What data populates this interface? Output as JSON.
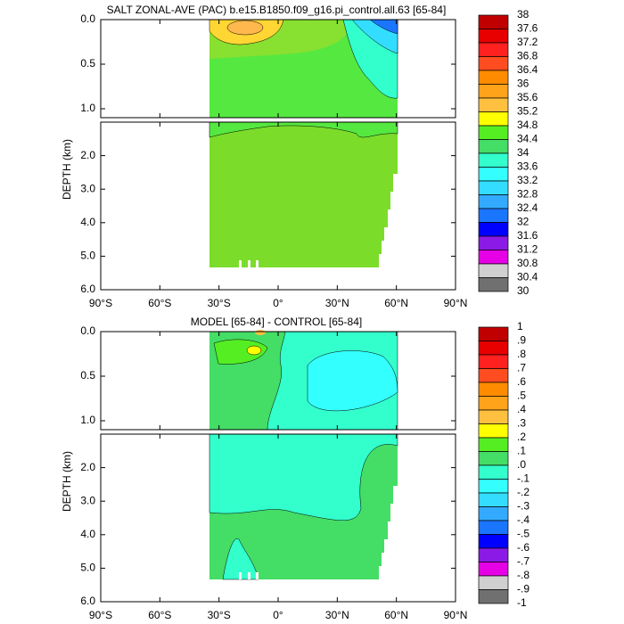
{
  "chart_data": [
    {
      "type": "contour",
      "title": "SALT ZONAL-AVE (PAC) b.e15.B1850.f09_g16.pi_control.all.63 [65-84]",
      "ylabel": "DEPTH (km)",
      "xlim": [
        -90,
        90
      ],
      "xticks": [
        {
          "value": -90,
          "label": "90°S"
        },
        {
          "value": -60,
          "label": "60°S"
        },
        {
          "value": -30,
          "label": "30°S"
        },
        {
          "value": 0,
          "label": "0°"
        },
        {
          "value": 30,
          "label": "30°N"
        },
        {
          "value": 60,
          "label": "60°N"
        },
        {
          "value": 90,
          "label": "90°N"
        }
      ],
      "panels": [
        {
          "ylim": [
            0,
            1.1
          ],
          "yticks": [
            {
              "value": 0,
              "label": "0.0"
            },
            {
              "value": 0.5,
              "label": "0.5"
            },
            {
              "value": 1,
              "label": "1.0"
            }
          ]
        },
        {
          "ylim": [
            1,
            6
          ],
          "yticks": [
            {
              "value": 2,
              "label": "2.0"
            },
            {
              "value": 3,
              "label": "3.0"
            },
            {
              "value": 4,
              "label": "4.0"
            },
            {
              "value": 5,
              "label": "5.0"
            },
            {
              "value": 6,
              "label": "6.0"
            }
          ]
        }
      ],
      "colorbar": {
        "levels": [
          38,
          37.6,
          37.2,
          36.8,
          36.4,
          36,
          35.6,
          35.2,
          34.8,
          34.4,
          34,
          33.6,
          33.2,
          32.8,
          32.4,
          32,
          31.6,
          31.2,
          30.8,
          30.4,
          30
        ],
        "colors": [
          "#c00000",
          "#e60000",
          "#ff2020",
          "#ff4d20",
          "#ff8c00",
          "#ffa31a",
          "#ffc040",
          "#ffff00",
          "#55ee22",
          "#44dd66",
          "#33ffcc",
          "#33ffff",
          "#33ddff",
          "#33aaff",
          "#1a75ff",
          "#0000ff",
          "#8c1ae6",
          "#e600e6",
          "#d0d0d0",
          "#707070"
        ]
      }
    },
    {
      "type": "contour",
      "title": "MODEL [65-84] - CONTROL [65-84]",
      "ylabel": "DEPTH (km)",
      "xlim": [
        -90,
        90
      ],
      "xticks": [
        {
          "value": -90,
          "label": "90°S"
        },
        {
          "value": -60,
          "label": "60°S"
        },
        {
          "value": -30,
          "label": "30°S"
        },
        {
          "value": 0,
          "label": "0°"
        },
        {
          "value": 30,
          "label": "30°N"
        },
        {
          "value": 60,
          "label": "60°N"
        },
        {
          "value": 90,
          "label": "90°N"
        }
      ],
      "panels": [
        {
          "ylim": [
            0,
            1.1
          ],
          "yticks": [
            {
              "value": 0,
              "label": "0.0"
            },
            {
              "value": 0.5,
              "label": "0.5"
            },
            {
              "value": 1,
              "label": "1.0"
            }
          ]
        },
        {
          "ylim": [
            1,
            6
          ],
          "yticks": [
            {
              "value": 2,
              "label": "2.0"
            },
            {
              "value": 3,
              "label": "3.0"
            },
            {
              "value": 4,
              "label": "4.0"
            },
            {
              "value": 5,
              "label": "5.0"
            },
            {
              "value": 6,
              "label": "6.0"
            }
          ]
        }
      ],
      "colorbar": {
        "levels": [
          1,
          {
            "value": 0.9,
            "label": ".9"
          },
          {
            "value": 0.8,
            "label": ".8"
          },
          {
            "value": 0.7,
            "label": ".7"
          },
          {
            "value": 0.6,
            "label": ".6"
          },
          {
            "value": 0.5,
            "label": ".5"
          },
          {
            "value": 0.4,
            "label": ".4"
          },
          {
            "value": 0.3,
            "label": ".3"
          },
          {
            "value": 0.2,
            "label": ".2"
          },
          {
            "value": 0.1,
            "label": ".1"
          },
          {
            "value": 0,
            "label": ".0"
          },
          {
            "value": -0.1,
            "label": "-.1"
          },
          {
            "value": -0.2,
            "label": "-.2"
          },
          {
            "value": -0.3,
            "label": "-.3"
          },
          {
            "value": -0.4,
            "label": "-.4"
          },
          {
            "value": -0.5,
            "label": "-.5"
          },
          {
            "value": -0.6,
            "label": "-.6"
          },
          {
            "value": -0.7,
            "label": "-.7"
          },
          {
            "value": -0.8,
            "label": "-.8"
          },
          {
            "value": -0.9,
            "label": "-.9"
          },
          -1
        ],
        "colors": [
          "#c00000",
          "#e60000",
          "#ff2020",
          "#ff4d20",
          "#ff8c00",
          "#ffa31a",
          "#ffc040",
          "#ffff00",
          "#55ee22",
          "#44dd66",
          "#33ffcc",
          "#33ffff",
          "#33ddff",
          "#33aaff",
          "#1a75ff",
          "#0000ff",
          "#8c1ae6",
          "#e600e6",
          "#d0d0d0",
          "#707070"
        ]
      }
    }
  ]
}
